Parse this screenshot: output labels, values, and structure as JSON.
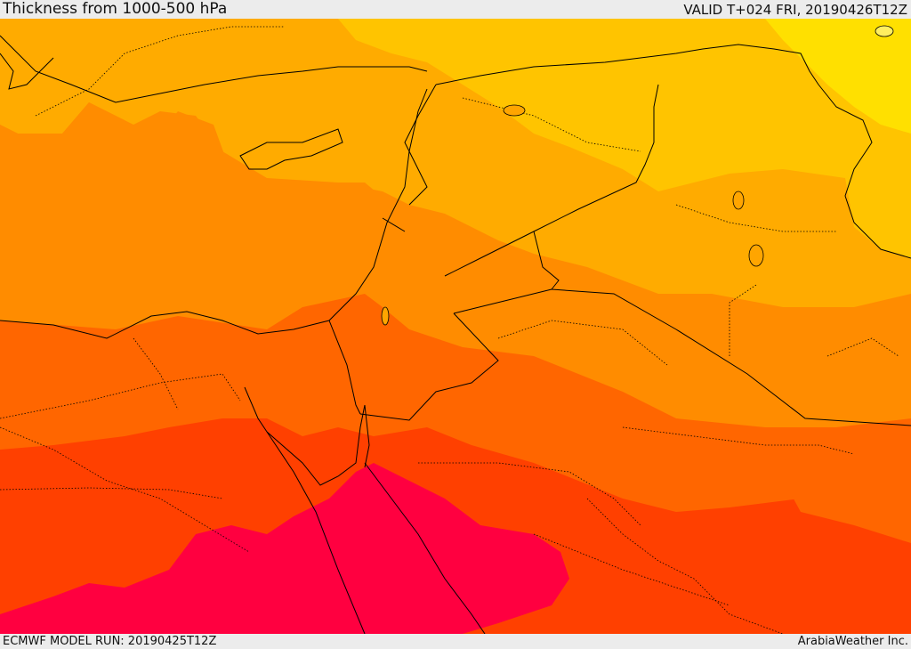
{
  "header": {
    "title": "Thickness from 1000-500 hPa",
    "valid": "VALID T+024 FRI, 20190426T12Z"
  },
  "footer": {
    "model_run": "ECMWF MODEL RUN: 20190425T12Z",
    "credit": "ArabiaWeather Inc."
  },
  "colors": {
    "band_yellow": "#ffe000",
    "band_gold": "#ffc400",
    "band_light_orange": "#ffab00",
    "band_orange": "#ff8c00",
    "band_dark_orange": "#ff6600",
    "band_red_orange": "#ff4000",
    "band_crimson": "#ff0040",
    "sea_orange": "#ffa500",
    "border": "#000000"
  }
}
